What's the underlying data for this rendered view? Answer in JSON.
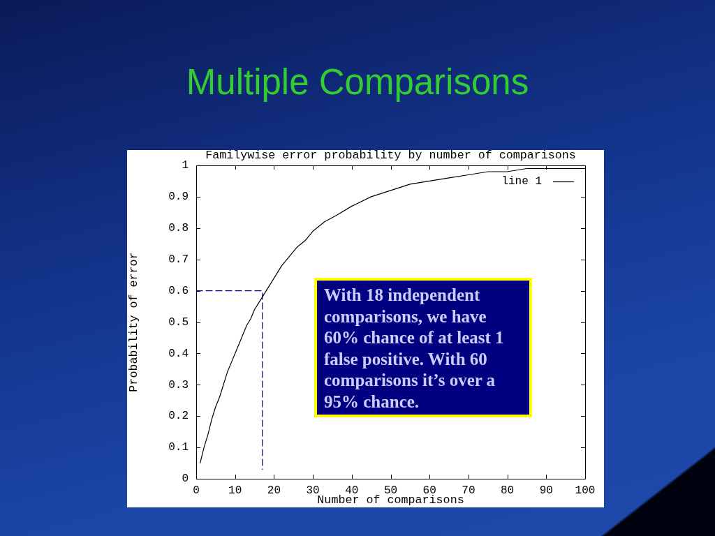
{
  "chart_data": {
    "type": "line",
    "title": "Multiple Comparisons",
    "subtitle": "Familywise error probability by number of comparisons",
    "xlabel": "Number of comparisons",
    "ylabel": "Probability of error",
    "xlim": [
      0,
      100
    ],
    "xticks": [
      0,
      10,
      20,
      30,
      40,
      50,
      60,
      70,
      80,
      90,
      100
    ],
    "ylim": [
      0,
      1
    ],
    "yticks": [
      0,
      0.1,
      0.2,
      0.3,
      0.4,
      0.5,
      0.6,
      0.7,
      0.8,
      0.9,
      1
    ],
    "legend": "top right",
    "series": [
      {
        "name": "line 1",
        "color": "#000000",
        "x": [
          1,
          2,
          3,
          4,
          5,
          6,
          7,
          8,
          9,
          10,
          11,
          12,
          13,
          14,
          15,
          16,
          17,
          18,
          19,
          20,
          22,
          24,
          26,
          28,
          30,
          33,
          36,
          40,
          45,
          50,
          55,
          60,
          65,
          70,
          75,
          80,
          85,
          90,
          95,
          100
        ],
        "values": [
          0.05,
          0.1,
          0.14,
          0.19,
          0.23,
          0.26,
          0.3,
          0.34,
          0.37,
          0.4,
          0.43,
          0.46,
          0.49,
          0.51,
          0.54,
          0.56,
          0.58,
          0.6,
          0.62,
          0.64,
          0.68,
          0.71,
          0.74,
          0.76,
          0.79,
          0.82,
          0.84,
          0.87,
          0.9,
          0.92,
          0.94,
          0.95,
          0.96,
          0.97,
          0.98,
          0.98,
          0.99,
          0.99,
          0.99,
          0.99
        ]
      },
      {
        "color": "#000080",
        "line_style": "dashed",
        "x": [
          0,
          17,
          17
        ],
        "values": [
          0.6,
          0.6,
          0.03
        ]
      }
    ],
    "annotations": [
      "With 18 independent comparisons, we have 60% chance of at least 1 false positive. With 60 comparisons it’s over a 95% chance."
    ]
  }
}
